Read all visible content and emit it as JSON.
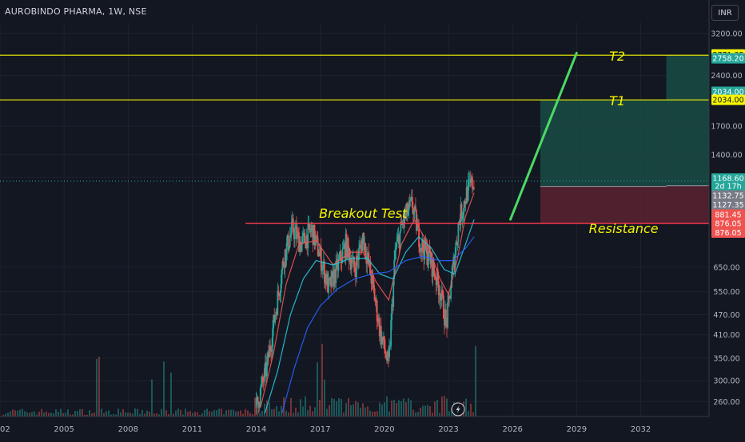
{
  "header": {
    "symbol_line": "AUROBINDO PHARMA, 1W, NSE",
    "currency_button": "INR"
  },
  "colors": {
    "background": "#131722",
    "up": "#26a69a",
    "down": "#ef5350",
    "level_line": "#f5f500",
    "resistance_line": "#ff3d4f",
    "trend_line": "#4cd964",
    "profit_zone": "#1a4c44",
    "loss_zone": "#5a2230"
  },
  "chart_data": {
    "type": "candlestick",
    "symbol": "AUROBINDO PHARMA",
    "interval": "1W",
    "exchange": "NSE",
    "y_scale": "log",
    "ylim": [
      235,
      3450
    ],
    "xlim": [
      2002,
      2035.2
    ],
    "x_ticks": [
      "2002",
      "2005",
      "2008",
      "2011",
      "2014",
      "2017",
      "2020",
      "2023",
      "2026",
      "2029",
      "2032"
    ],
    "y_ticks": [
      "3200.00",
      "2400.00",
      "1700.00",
      "1400.00",
      "1200.00",
      "650.00",
      "550.00",
      "470.00",
      "410.00",
      "350.00",
      "300.00",
      "260.00"
    ],
    "price_path": [
      [
        2014.0,
        250
      ],
      [
        2014.5,
        330
      ],
      [
        2014.9,
        480
      ],
      [
        2015.3,
        700
      ],
      [
        2015.7,
        850
      ],
      [
        2016.1,
        760
      ],
      [
        2016.6,
        840
      ],
      [
        2017.0,
        700
      ],
      [
        2017.4,
        560
      ],
      [
        2017.8,
        650
      ],
      [
        2018.2,
        760
      ],
      [
        2018.6,
        640
      ],
      [
        2019.0,
        800
      ],
      [
        2019.4,
        600
      ],
      [
        2019.8,
        420
      ],
      [
        2020.2,
        330
      ],
      [
        2020.5,
        720
      ],
      [
        2020.9,
        900
      ],
      [
        2021.3,
        1000
      ],
      [
        2021.7,
        760
      ],
      [
        2022.1,
        700
      ],
      [
        2022.6,
        560
      ],
      [
        2022.9,
        440
      ],
      [
        2023.2,
        640
      ],
      [
        2023.5,
        900
      ],
      [
        2023.9,
        1100
      ],
      [
        2024.2,
        1169
      ]
    ],
    "moving_averages": [
      {
        "color": "#ef5350",
        "points": [
          [
            2014.2,
            250
          ],
          [
            2014.8,
            360
          ],
          [
            2015.4,
            580
          ],
          [
            2016.0,
            760
          ],
          [
            2016.8,
            780
          ],
          [
            2017.6,
            660
          ],
          [
            2018.4,
            720
          ],
          [
            2019.0,
            720
          ],
          [
            2019.6,
            590
          ],
          [
            2020.2,
            520
          ],
          [
            2020.8,
            760
          ],
          [
            2021.4,
            900
          ],
          [
            2022.0,
            770
          ],
          [
            2022.6,
            600
          ],
          [
            2023.0,
            540
          ],
          [
            2023.4,
            680
          ],
          [
            2023.8,
            920
          ],
          [
            2024.2,
            1080
          ]
        ]
      },
      {
        "color": "#26c6da",
        "points": [
          [
            2014.4,
            240
          ],
          [
            2015.0,
            320
          ],
          [
            2015.6,
            470
          ],
          [
            2016.2,
            600
          ],
          [
            2016.8,
            680
          ],
          [
            2017.6,
            660
          ],
          [
            2018.4,
            690
          ],
          [
            2019.2,
            690
          ],
          [
            2019.8,
            620
          ],
          [
            2020.4,
            600
          ],
          [
            2021.0,
            720
          ],
          [
            2021.6,
            800
          ],
          [
            2022.2,
            740
          ],
          [
            2022.8,
            640
          ],
          [
            2023.3,
            620
          ],
          [
            2023.8,
            760
          ],
          [
            2024.2,
            900
          ]
        ]
      },
      {
        "color": "#2962ff",
        "points": [
          [
            2015.2,
            240
          ],
          [
            2015.8,
            330
          ],
          [
            2016.4,
            430
          ],
          [
            2017.0,
            500
          ],
          [
            2017.8,
            560
          ],
          [
            2018.6,
            600
          ],
          [
            2019.4,
            620
          ],
          [
            2020.2,
            630
          ],
          [
            2021.0,
            680
          ],
          [
            2021.8,
            700
          ],
          [
            2022.6,
            680
          ],
          [
            2023.2,
            680
          ],
          [
            2023.8,
            740
          ],
          [
            2024.2,
            800
          ]
        ]
      }
    ],
    "horizontal_levels": [
      {
        "price": 2758.2,
        "label": "T2"
      },
      {
        "price": 2034.0,
        "label": "T1"
      },
      {
        "price": 876.05,
        "label": "Resistance"
      }
    ],
    "annotations": [
      {
        "text": "Breakout Test",
        "x": 2019.0,
        "price": 910
      },
      {
        "text": "T2",
        "x": 2030.9,
        "price": 2660
      },
      {
        "text": "T1",
        "x": 2030.9,
        "price": 1960
      },
      {
        "text": "Resistance",
        "x": 2031.2,
        "price": 820
      }
    ],
    "trend_line": [
      [
        2025.9,
        900
      ],
      [
        2029.0,
        2800
      ]
    ],
    "positions": [
      {
        "x_start": 2027.3,
        "x_end": 2033.2,
        "entry": 1127.35,
        "target": 2034.0,
        "stop": 876.05
      },
      {
        "x_start": 2033.2,
        "x_end": 2039.5,
        "entry": 1132.75,
        "target": 2758.2,
        "stop": 876.05
      }
    ],
    "last_price": 1168.6,
    "price_labels": [
      {
        "text": "2771.35",
        "price": 2771.35,
        "bg": "#f5f500",
        "fg": "#131722"
      },
      {
        "text": "2758.20",
        "price": 2700,
        "bg": "#26a69a",
        "fg": "#ffffff"
      },
      {
        "text": "2034.00",
        "price": 2150,
        "bg": "#26a69a",
        "fg": "#ffffff"
      },
      {
        "text": "2034.00",
        "price": 2034.0,
        "bg": "#f5f500",
        "fg": "#131722"
      },
      {
        "text": "1168.60",
        "price": 1190,
        "bg": "#26a69a",
        "fg": "#ffffff"
      },
      {
        "text": "2d 17h",
        "price": 1130,
        "bg": "#26a69a",
        "fg": "#ffffff"
      },
      {
        "text": "1132.75",
        "price": 1060,
        "bg": "#787b86",
        "fg": "#ffffff"
      },
      {
        "text": "1127.35",
        "price": 995,
        "bg": "#787b86",
        "fg": "#ffffff"
      },
      {
        "text": "881.45",
        "price": 930,
        "bg": "#ef5350",
        "fg": "#ffffff"
      },
      {
        "text": "876.05",
        "price": 876.05,
        "bg": "#ef5350",
        "fg": "#ffffff"
      },
      {
        "text": "876.05",
        "price": 823,
        "bg": "#ef5350",
        "fg": "#ffffff"
      }
    ]
  }
}
